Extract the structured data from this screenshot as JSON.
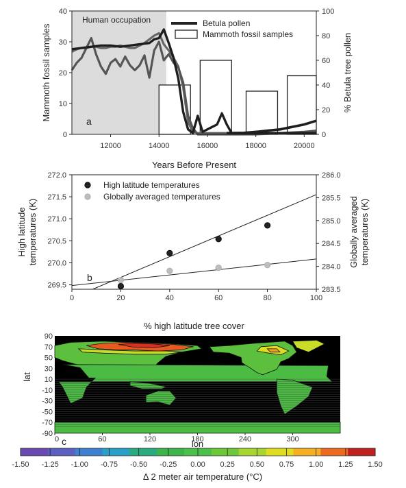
{
  "chart_data": [
    {
      "panel_label": "a",
      "type": "line",
      "shaded_region": {
        "label": "Human occupation",
        "x_range": [
          10400,
          14300
        ]
      },
      "xlabel": "Years Before Present",
      "ylabel_left": "Mammoth fossil samples",
      "ylabel_right": "% Betula tree pollen",
      "xlim": [
        10400,
        20500
      ],
      "ylim_left": [
        0,
        40
      ],
      "ylim_right": [
        0,
        100
      ],
      "x_ticks": [
        12000,
        14000,
        16000,
        18000,
        20000
      ],
      "y_ticks_left": [
        0,
        10,
        20,
        30,
        40
      ],
      "y_ticks_right": [
        0,
        20,
        40,
        60,
        80,
        100
      ],
      "legend": {
        "line_label": "Betula pollen",
        "bar_label": "Mammoth fossil samples"
      },
      "bars": [
        {
          "x0": 14000,
          "x1": 15300,
          "value": 16
        },
        {
          "x0": 15700,
          "x1": 17000,
          "value": 24
        },
        {
          "x0": 17600,
          "x1": 18900,
          "value": 14
        },
        {
          "x0": 19300,
          "x1": 20600,
          "value": 19
        }
      ],
      "series": [
        {
          "x": [
            10400,
            10600,
            10800,
            11000,
            11200,
            11400,
            11600,
            11800,
            12000,
            12200,
            12400,
            12600,
            12800,
            13000,
            13200,
            13400,
            13600,
            13800,
            14000,
            14200,
            14400,
            14600,
            14800,
            15000,
            15200,
            15400,
            15600,
            15800,
            16000,
            16500,
            17000,
            18000,
            19000,
            20000,
            20500
          ],
          "y": [
            67,
            69,
            70,
            70,
            71,
            71,
            70,
            70,
            71,
            71,
            72,
            71,
            70,
            70,
            72,
            74,
            77,
            80,
            82,
            73,
            68,
            62,
            55,
            38,
            10,
            2,
            1,
            1,
            1,
            1,
            1,
            1,
            1,
            1,
            1
          ]
        },
        {
          "x": [
            10400,
            10600,
            10800,
            11000,
            11200,
            11400,
            11600,
            11800,
            12000,
            12200,
            12400,
            12600,
            12800,
            13000,
            13200,
            13400,
            13600,
            13800,
            14000,
            14200,
            14400,
            14600,
            14800,
            15000,
            15200,
            15400,
            15600,
            15800,
            16000,
            17000,
            18000,
            19000,
            20000,
            20500
          ],
          "y": [
            52,
            58,
            62,
            70,
            78,
            65,
            55,
            49,
            58,
            61,
            55,
            63,
            56,
            52,
            56,
            64,
            46,
            68,
            75,
            60,
            65,
            58,
            54,
            42,
            15,
            5,
            0,
            0,
            0,
            0,
            0,
            1,
            2,
            3
          ]
        },
        {
          "x": [
            10400,
            10800,
            11200,
            11600,
            12000,
            12400,
            12800,
            13200,
            13600,
            13800,
            14000,
            14200,
            14400,
            14600,
            14800,
            15000,
            15200,
            15400,
            15600,
            15800,
            16000,
            16200,
            16400,
            16600,
            16800,
            17000,
            18000,
            19000,
            20000,
            20500
          ],
          "y": [
            69,
            70,
            71,
            72,
            72,
            71,
            72,
            73,
            74,
            77,
            78,
            85,
            74,
            62,
            45,
            18,
            4,
            1,
            15,
            2,
            4,
            6,
            8,
            17,
            8,
            1,
            1,
            1,
            1,
            1
          ]
        },
        {
          "x": [
            16800,
            17500,
            18000,
            18500,
            19000,
            19500,
            20000,
            20500
          ],
          "y": [
            1,
            1.2,
            2,
            3,
            4,
            6,
            8,
            11
          ]
        }
      ]
    },
    {
      "panel_label": "b",
      "type": "scatter",
      "xlabel": "% high latitude tree cover",
      "ylabel_left": "High latitude temperatures (K)",
      "ylabel_right": "Globally averaged temperatures (K)",
      "xlim": [
        0,
        100
      ],
      "ylim_left": [
        269.4,
        272.0
      ],
      "ylim_right": [
        283.5,
        286.0
      ],
      "x_ticks": [
        0,
        20,
        40,
        60,
        80,
        100
      ],
      "y_ticks_left": [
        "269.5",
        "270.0",
        "270.5",
        "271.0",
        "271.5",
        "272.0"
      ],
      "y_ticks_right": [
        "283.5",
        "284.0",
        "284.5",
        "285.0",
        "285.5",
        "286.0"
      ],
      "series": [
        {
          "name": "High latitude temperatures",
          "color": "#222222",
          "x": [
            20,
            40,
            60,
            80
          ],
          "y": [
            269.47,
            270.22,
            270.54,
            270.85
          ]
        },
        {
          "name": "Globally averaged temperatures",
          "color": "#bdbdbd",
          "x": [
            20,
            40,
            60,
            80
          ],
          "y": [
            283.7,
            283.9,
            283.97,
            284.03
          ]
        }
      ],
      "fit_lines": [
        {
          "axis": "left",
          "x": [
            0,
            100
          ],
          "y": [
            269.2,
            271.55
          ]
        },
        {
          "axis": "right",
          "x": [
            0,
            100
          ],
          "y": [
            283.58,
            284.16
          ]
        }
      ]
    },
    {
      "panel_label": "c",
      "type": "heatmap",
      "xlabel": "lon",
      "ylabel": "lat",
      "x_ticks": [
        0,
        60,
        120,
        180,
        240,
        300
      ],
      "y_ticks": [
        90,
        70,
        50,
        30,
        10,
        -10,
        -30,
        -50,
        -70,
        -90
      ],
      "colorbar": {
        "label": "Δ 2 meter air temperature (°C)",
        "ticks": [
          "-1.50",
          "-1.25",
          "-1.00",
          "-0.75",
          "-0.50",
          "-0.25",
          "0.00",
          "0.25",
          "0.50",
          "0.75",
          "1.00",
          "1.25",
          "1.50"
        ],
        "colors": [
          "#6a4ab0",
          "#5a5fc0",
          "#3f7fd0",
          "#2aa0c8",
          "#2aaa80",
          "#3cb44a",
          "#4cc04a",
          "#6cc83a",
          "#a8d630",
          "#e0dc20",
          "#f4b020",
          "#ec6a20",
          "#c02020"
        ]
      }
    }
  ]
}
